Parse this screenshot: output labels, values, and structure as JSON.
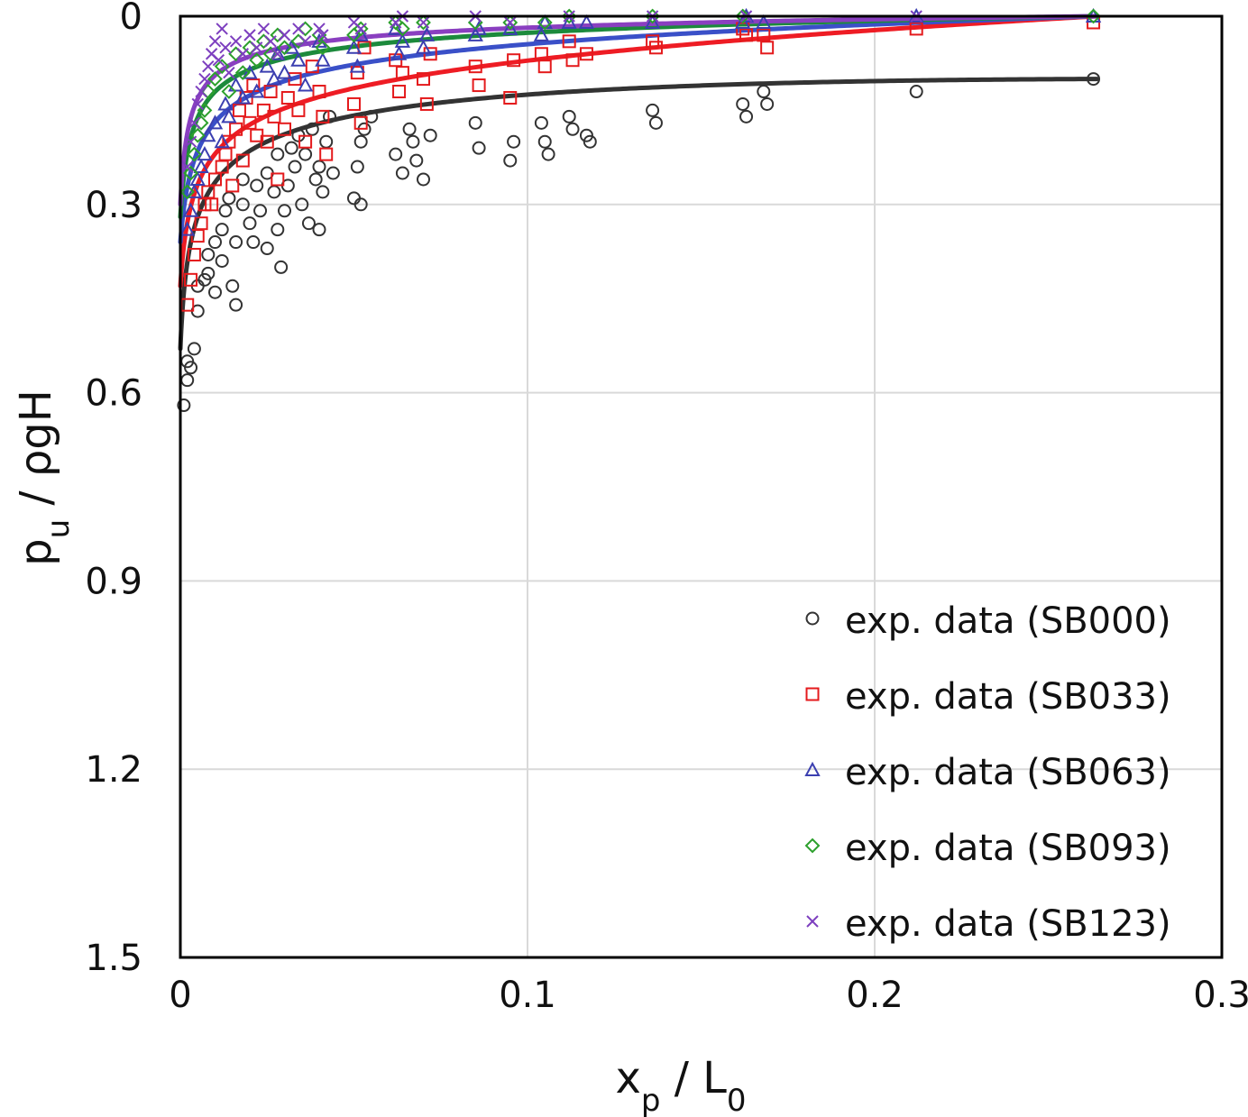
{
  "chart_data": {
    "type": "scatter",
    "title": "",
    "xlabel": {
      "main": "x",
      "sub": "p",
      "rest": " / L",
      "sub2": "0"
    },
    "ylabel": {
      "main": "p",
      "sub": "u",
      "rest": " / ρgH"
    },
    "xlim": [
      0,
      0.3
    ],
    "ylim": [
      0,
      1.5
    ],
    "y_inverted": true,
    "x_ticks": [
      "0",
      "0.1",
      "0.2",
      "0.3"
    ],
    "y_ticks": [
      "0",
      "0.3",
      "0.6",
      "0.9",
      "1.2",
      "1.5"
    ],
    "grid": true,
    "legend_position": "bottom-right",
    "series": [
      {
        "name": "exp. data (SB000)",
        "marker": "circle",
        "color": "#333333",
        "fit": {
          "a": 0.53,
          "n": 0.3,
          "x0": 0.0012,
          "line_color": "#333333"
        },
        "points": [
          [
            0.001,
            0.62
          ],
          [
            0.002,
            0.58
          ],
          [
            0.002,
            0.55
          ],
          [
            0.003,
            0.56
          ],
          [
            0.004,
            0.53
          ],
          [
            0.005,
            0.47
          ],
          [
            0.005,
            0.43
          ],
          [
            0.007,
            0.42
          ],
          [
            0.008,
            0.41
          ],
          [
            0.008,
            0.38
          ],
          [
            0.01,
            0.44
          ],
          [
            0.01,
            0.36
          ],
          [
            0.012,
            0.34
          ],
          [
            0.012,
            0.39
          ],
          [
            0.013,
            0.31
          ],
          [
            0.014,
            0.29
          ],
          [
            0.015,
            0.43
          ],
          [
            0.016,
            0.46
          ],
          [
            0.016,
            0.36
          ],
          [
            0.018,
            0.3
          ],
          [
            0.018,
            0.26
          ],
          [
            0.02,
            0.33
          ],
          [
            0.021,
            0.36
          ],
          [
            0.022,
            0.27
          ],
          [
            0.023,
            0.31
          ],
          [
            0.025,
            0.37
          ],
          [
            0.025,
            0.25
          ],
          [
            0.027,
            0.28
          ],
          [
            0.028,
            0.34
          ],
          [
            0.028,
            0.22
          ],
          [
            0.029,
            0.4
          ],
          [
            0.03,
            0.31
          ],
          [
            0.031,
            0.27
          ],
          [
            0.032,
            0.21
          ],
          [
            0.033,
            0.24
          ],
          [
            0.034,
            0.19
          ],
          [
            0.035,
            0.3
          ],
          [
            0.036,
            0.22
          ],
          [
            0.037,
            0.33
          ],
          [
            0.038,
            0.18
          ],
          [
            0.039,
            0.26
          ],
          [
            0.04,
            0.24
          ],
          [
            0.04,
            0.34
          ],
          [
            0.041,
            0.28
          ],
          [
            0.042,
            0.2
          ],
          [
            0.043,
            0.16
          ],
          [
            0.044,
            0.25
          ],
          [
            0.05,
            0.29
          ],
          [
            0.051,
            0.24
          ],
          [
            0.052,
            0.3
          ],
          [
            0.052,
            0.2
          ],
          [
            0.053,
            0.18
          ],
          [
            0.055,
            0.16
          ],
          [
            0.062,
            0.22
          ],
          [
            0.064,
            0.25
          ],
          [
            0.066,
            0.18
          ],
          [
            0.067,
            0.2
          ],
          [
            0.068,
            0.23
          ],
          [
            0.07,
            0.26
          ],
          [
            0.072,
            0.19
          ],
          [
            0.085,
            0.17
          ],
          [
            0.086,
            0.21
          ],
          [
            0.095,
            0.23
          ],
          [
            0.096,
            0.2
          ],
          [
            0.104,
            0.17
          ],
          [
            0.105,
            0.2
          ],
          [
            0.106,
            0.22
          ],
          [
            0.112,
            0.16
          ],
          [
            0.113,
            0.18
          ],
          [
            0.117,
            0.19
          ],
          [
            0.118,
            0.2
          ],
          [
            0.136,
            0.15
          ],
          [
            0.137,
            0.17
          ],
          [
            0.162,
            0.14
          ],
          [
            0.163,
            0.16
          ],
          [
            0.168,
            0.12
          ],
          [
            0.169,
            0.14
          ],
          [
            0.212,
            0.12
          ],
          [
            0.263,
            0.1
          ]
        ]
      },
      {
        "name": "exp. data (SB033)",
        "marker": "square",
        "color": "#e41a1c",
        "fit": {
          "a": 0.43,
          "n": 0.32,
          "x0": 0.0016,
          "line_color": "#ee1c24"
        },
        "points": [
          [
            0.002,
            0.46
          ],
          [
            0.003,
            0.42
          ],
          [
            0.004,
            0.38
          ],
          [
            0.005,
            0.35
          ],
          [
            0.006,
            0.33
          ],
          [
            0.007,
            0.3
          ],
          [
            0.008,
            0.28
          ],
          [
            0.009,
            0.3
          ],
          [
            0.01,
            0.26
          ],
          [
            0.012,
            0.24
          ],
          [
            0.013,
            0.22
          ],
          [
            0.014,
            0.2
          ],
          [
            0.015,
            0.27
          ],
          [
            0.016,
            0.18
          ],
          [
            0.017,
            0.15
          ],
          [
            0.018,
            0.23
          ],
          [
            0.019,
            0.13
          ],
          [
            0.02,
            0.17
          ],
          [
            0.021,
            0.11
          ],
          [
            0.022,
            0.19
          ],
          [
            0.024,
            0.15
          ],
          [
            0.025,
            0.2
          ],
          [
            0.026,
            0.12
          ],
          [
            0.027,
            0.16
          ],
          [
            0.028,
            0.26
          ],
          [
            0.03,
            0.18
          ],
          [
            0.031,
            0.13
          ],
          [
            0.033,
            0.1
          ],
          [
            0.034,
            0.15
          ],
          [
            0.036,
            0.2
          ],
          [
            0.038,
            0.08
          ],
          [
            0.04,
            0.12
          ],
          [
            0.041,
            0.16
          ],
          [
            0.042,
            0.22
          ],
          [
            0.05,
            0.14
          ],
          [
            0.051,
            0.09
          ],
          [
            0.052,
            0.17
          ],
          [
            0.053,
            0.05
          ],
          [
            0.062,
            0.07
          ],
          [
            0.063,
            0.12
          ],
          [
            0.064,
            0.09
          ],
          [
            0.07,
            0.1
          ],
          [
            0.071,
            0.14
          ],
          [
            0.072,
            0.06
          ],
          [
            0.085,
            0.08
          ],
          [
            0.086,
            0.11
          ],
          [
            0.095,
            0.13
          ],
          [
            0.096,
            0.07
          ],
          [
            0.104,
            0.06
          ],
          [
            0.105,
            0.08
          ],
          [
            0.112,
            0.04
          ],
          [
            0.113,
            0.07
          ],
          [
            0.117,
            0.06
          ],
          [
            0.136,
            0.04
          ],
          [
            0.137,
            0.05
          ],
          [
            0.162,
            0.02
          ],
          [
            0.163,
            0.03
          ],
          [
            0.168,
            0.03
          ],
          [
            0.169,
            0.05
          ],
          [
            0.212,
            0.02
          ],
          [
            0.263,
            0.01
          ]
        ]
      },
      {
        "name": "exp. data (SB063)",
        "marker": "triangle",
        "color": "#3b3fb0",
        "fit": {
          "a": 0.36,
          "n": 0.42,
          "x0": 0.0022,
          "line_color": "#3a50c8"
        },
        "points": [
          [
            0.002,
            0.34
          ],
          [
            0.003,
            0.31
          ],
          [
            0.004,
            0.28
          ],
          [
            0.005,
            0.26
          ],
          [
            0.006,
            0.24
          ],
          [
            0.007,
            0.22
          ],
          [
            0.008,
            0.19
          ],
          [
            0.01,
            0.17
          ],
          [
            0.012,
            0.2
          ],
          [
            0.013,
            0.14
          ],
          [
            0.014,
            0.16
          ],
          [
            0.016,
            0.11
          ],
          [
            0.018,
            0.13
          ],
          [
            0.02,
            0.09
          ],
          [
            0.022,
            0.12
          ],
          [
            0.025,
            0.08
          ],
          [
            0.027,
            0.1
          ],
          [
            0.028,
            0.06
          ],
          [
            0.03,
            0.09
          ],
          [
            0.032,
            0.05
          ],
          [
            0.034,
            0.07
          ],
          [
            0.036,
            0.11
          ],
          [
            0.04,
            0.04
          ],
          [
            0.041,
            0.07
          ],
          [
            0.05,
            0.05
          ],
          [
            0.051,
            0.08
          ],
          [
            0.052,
            0.03
          ],
          [
            0.062,
            0.02
          ],
          [
            0.063,
            0.06
          ],
          [
            0.064,
            0.04
          ],
          [
            0.07,
            0.05
          ],
          [
            0.071,
            0.03
          ],
          [
            0.085,
            0.03
          ],
          [
            0.086,
            0.02
          ],
          [
            0.095,
            0.02
          ],
          [
            0.104,
            0.03
          ],
          [
            0.105,
            0.01
          ],
          [
            0.112,
            0.01
          ],
          [
            0.117,
            0.01
          ],
          [
            0.136,
            0.01
          ],
          [
            0.162,
            0.01
          ],
          [
            0.163,
            0.0
          ],
          [
            0.168,
            0.01
          ],
          [
            0.212,
            0.0
          ],
          [
            0.263,
            0.0
          ]
        ]
      },
      {
        "name": "exp. data (SB093)",
        "marker": "diamond",
        "color": "#2ca02c",
        "fit": {
          "a": 0.32,
          "n": 0.5,
          "x0": 0.0018,
          "line_color": "#1c8a3c"
        },
        "points": [
          [
            0.002,
            0.28
          ],
          [
            0.003,
            0.25
          ],
          [
            0.004,
            0.22
          ],
          [
            0.005,
            0.19
          ],
          [
            0.006,
            0.17
          ],
          [
            0.007,
            0.15
          ],
          [
            0.008,
            0.12
          ],
          [
            0.01,
            0.1
          ],
          [
            0.012,
            0.08
          ],
          [
            0.014,
            0.12
          ],
          [
            0.016,
            0.06
          ],
          [
            0.018,
            0.09
          ],
          [
            0.02,
            0.05
          ],
          [
            0.022,
            0.07
          ],
          [
            0.024,
            0.04
          ],
          [
            0.026,
            0.06
          ],
          [
            0.028,
            0.03
          ],
          [
            0.03,
            0.05
          ],
          [
            0.034,
            0.04
          ],
          [
            0.036,
            0.02
          ],
          [
            0.04,
            0.03
          ],
          [
            0.041,
            0.05
          ],
          [
            0.05,
            0.03
          ],
          [
            0.052,
            0.02
          ],
          [
            0.062,
            0.01
          ],
          [
            0.064,
            0.02
          ],
          [
            0.07,
            0.01
          ],
          [
            0.085,
            0.01
          ],
          [
            0.095,
            0.01
          ],
          [
            0.105,
            0.01
          ],
          [
            0.112,
            0.0
          ],
          [
            0.136,
            0.0
          ],
          [
            0.162,
            0.0
          ],
          [
            0.263,
            0.0
          ]
        ]
      },
      {
        "name": "exp. data (SB123)",
        "marker": "x",
        "color": "#7d3fbf",
        "fit": {
          "a": 0.3,
          "n": 0.55,
          "x0": 0.0015,
          "line_color": "#8a3fc0"
        },
        "points": [
          [
            0.002,
            0.24
          ],
          [
            0.003,
            0.2
          ],
          [
            0.004,
            0.17
          ],
          [
            0.005,
            0.14
          ],
          [
            0.006,
            0.12
          ],
          [
            0.007,
            0.1
          ],
          [
            0.008,
            0.08
          ],
          [
            0.009,
            0.06
          ],
          [
            0.01,
            0.04
          ],
          [
            0.011,
            0.07
          ],
          [
            0.012,
            0.02
          ],
          [
            0.013,
            0.05
          ],
          [
            0.014,
            0.09
          ],
          [
            0.016,
            0.04
          ],
          [
            0.018,
            0.06
          ],
          [
            0.02,
            0.03
          ],
          [
            0.022,
            0.05
          ],
          [
            0.024,
            0.02
          ],
          [
            0.026,
            0.04
          ],
          [
            0.028,
            0.06
          ],
          [
            0.03,
            0.03
          ],
          [
            0.034,
            0.02
          ],
          [
            0.036,
            0.04
          ],
          [
            0.04,
            0.02
          ],
          [
            0.041,
            0.03
          ],
          [
            0.05,
            0.01
          ],
          [
            0.052,
            0.02
          ],
          [
            0.062,
            0.01
          ],
          [
            0.064,
            0.0
          ],
          [
            0.07,
            0.01
          ],
          [
            0.085,
            0.0
          ],
          [
            0.095,
            0.01
          ],
          [
            0.112,
            0.0
          ],
          [
            0.136,
            0.0
          ],
          [
            0.163,
            0.0
          ],
          [
            0.212,
            0.0
          ]
        ]
      }
    ]
  }
}
